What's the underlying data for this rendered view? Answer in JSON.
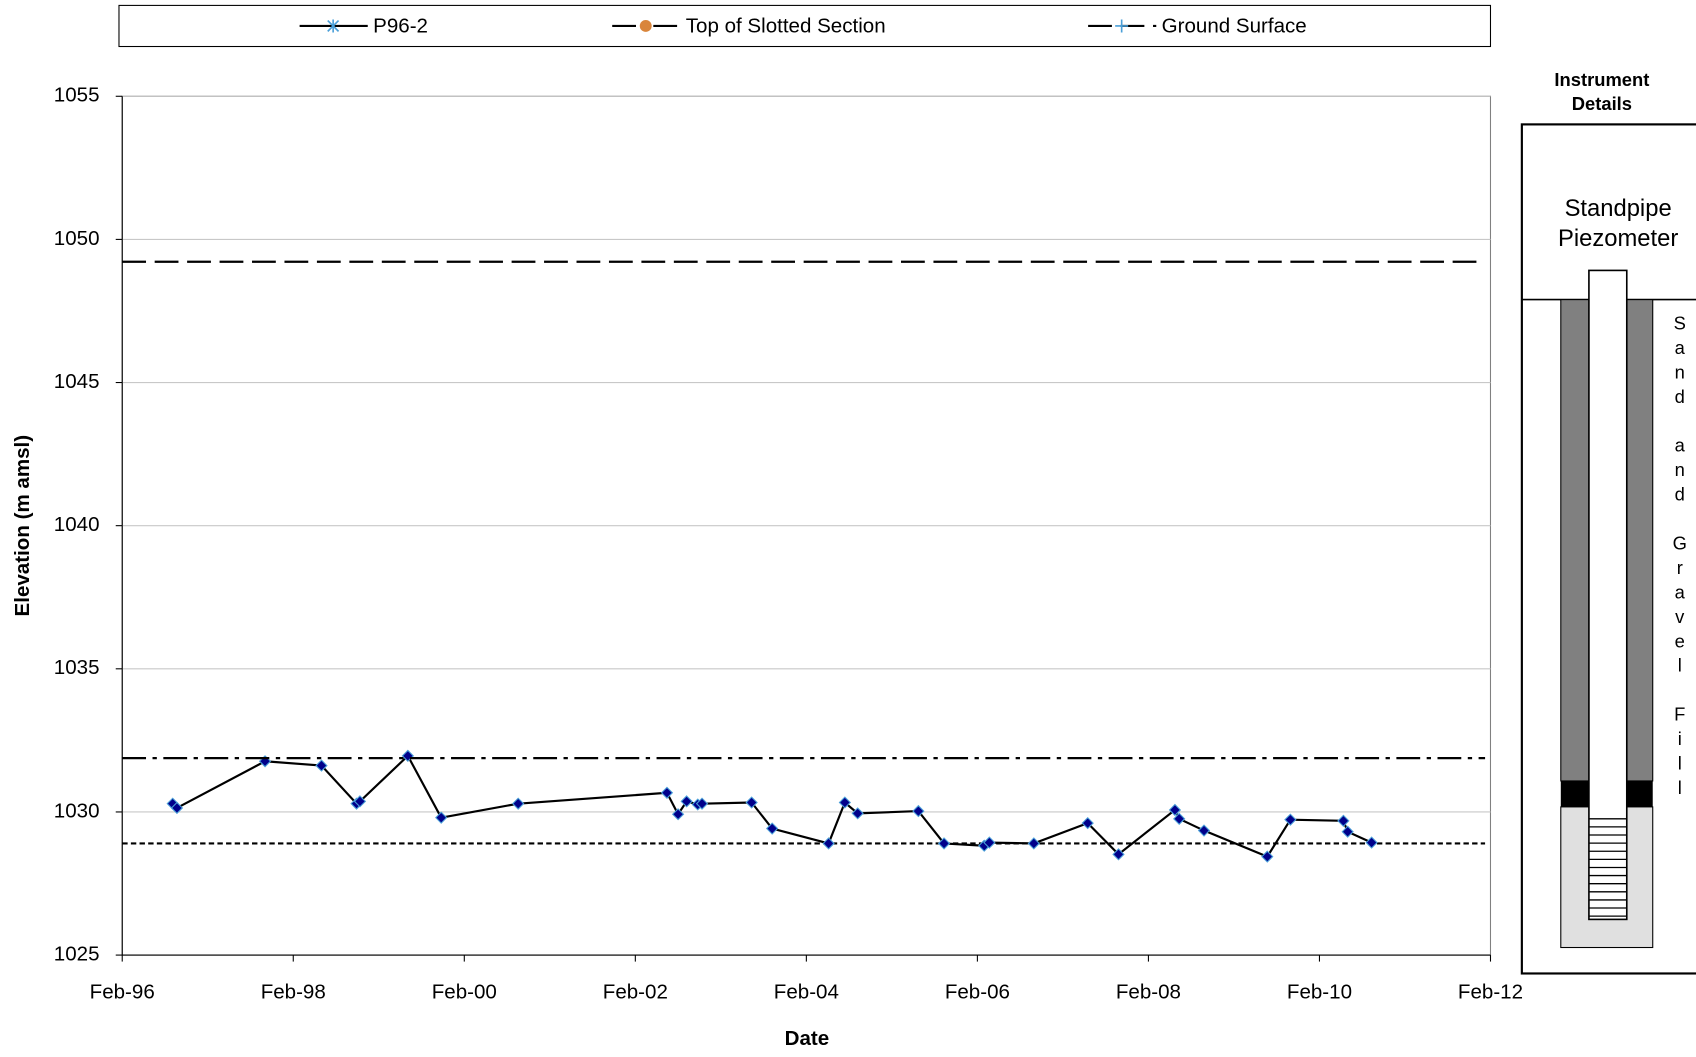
{
  "chart_data": {
    "type": "line",
    "x_label": "Date",
    "y_label": "Elevation (m amsl)",
    "xlim": [
      1996.08,
      2012.08
    ],
    "xticks": [
      {
        "value": 1996.08,
        "label": "Feb-96"
      },
      {
        "value": 1998.08,
        "label": "Feb-98"
      },
      {
        "value": 2000.08,
        "label": "Feb-00"
      },
      {
        "value": 2002.08,
        "label": "Feb-02"
      },
      {
        "value": 2004.08,
        "label": "Feb-04"
      },
      {
        "value": 2006.08,
        "label": "Feb-06"
      },
      {
        "value": 2008.08,
        "label": "Feb-08"
      },
      {
        "value": 2010.08,
        "label": "Feb-10"
      },
      {
        "value": 2012.08,
        "label": "Feb-12"
      }
    ],
    "ylim": [
      1025,
      1055
    ],
    "yticks": [
      1025,
      1030,
      1035,
      1040,
      1045,
      1050,
      1055
    ],
    "grid": true,
    "x": [
      1996.67,
      1996.72,
      1997.75,
      1998.41,
      1998.82,
      1998.86,
      1999.42,
      1999.81,
      2000.71,
      2002.45,
      2002.58,
      2002.68,
      2002.81,
      2002.86,
      2003.44,
      2003.68,
      2004.34,
      2004.53,
      2004.68,
      2005.39,
      2005.69,
      2006.16,
      2006.22,
      2006.74,
      2007.37,
      2007.73,
      2008.39,
      2008.44,
      2008.73,
      2009.47,
      2009.74,
      2010.36,
      2010.41,
      2010.69
    ],
    "series": [
      {
        "name": "P96-2",
        "color": "#000000",
        "marker_color": "#00008b",
        "legend_marker_color": "#4a9fd8",
        "values": [
          1030.29,
          1030.14,
          1031.77,
          1031.62,
          1030.29,
          1030.37,
          1031.96,
          1029.8,
          1030.29,
          1030.67,
          1029.92,
          1030.37,
          1030.26,
          1030.29,
          1030.33,
          1029.42,
          1028.9,
          1030.33,
          1029.95,
          1030.03,
          1028.9,
          1028.82,
          1028.93,
          1028.9,
          1029.61,
          1028.52,
          1030.07,
          1029.76,
          1029.35,
          1028.44,
          1029.73,
          1029.69,
          1029.31,
          1028.93
        ]
      },
      {
        "name": "Top of Slotted Section",
        "color": "#000000",
        "marker_color": "#d9853b",
        "dash": "22,6,4,6",
        "level": 1031.88
      },
      {
        "name": "Ground Surface",
        "color": "#000000",
        "marker_color": "#4a9fd8",
        "dash": "22,8",
        "level": 1049.22
      }
    ],
    "reference_lines": [
      {
        "value": 1028.9,
        "dash": "5,3"
      }
    ],
    "instrument": {
      "title": "Instrument Details",
      "label": "Standpipe Piezometer",
      "fill_label": "Sand and Gravel Fill"
    }
  }
}
